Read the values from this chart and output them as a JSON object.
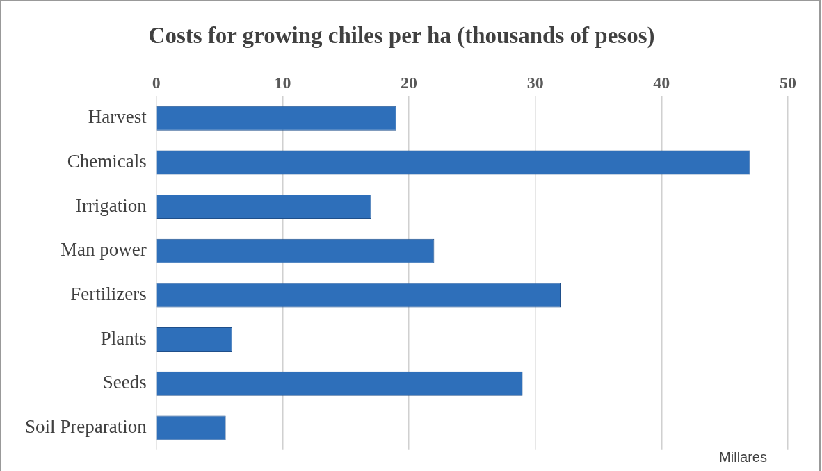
{
  "chart_data": {
    "type": "bar",
    "orientation": "horizontal",
    "title": "Costs for growing chiles per ha (thousands of pesos)",
    "categories": [
      "Harvest",
      "Chemicals",
      "Irrigation",
      "Man power",
      "Fertilizers",
      "Plants",
      "Seeds",
      "Soil Preparation"
    ],
    "values": [
      19,
      47,
      17,
      22,
      32,
      6,
      29,
      5.5
    ],
    "color": "#2e6fba",
    "xlim": [
      0,
      50
    ],
    "xticks": [
      0,
      10,
      20,
      30,
      40,
      50
    ],
    "grid": "x",
    "legend": false,
    "annotations": [
      "Millares"
    ]
  }
}
